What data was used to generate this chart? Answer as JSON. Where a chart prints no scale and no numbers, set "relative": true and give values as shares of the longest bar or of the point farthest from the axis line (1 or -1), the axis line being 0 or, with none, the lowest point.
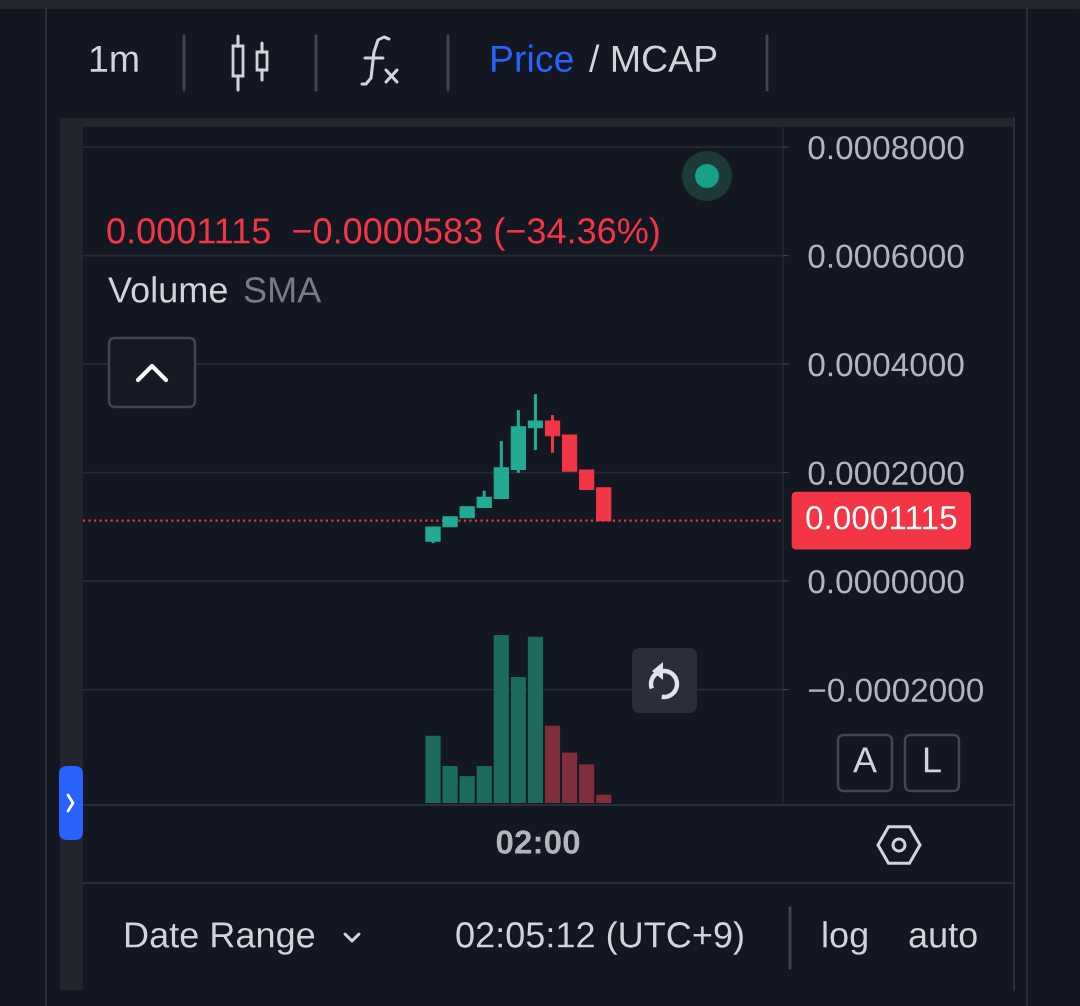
{
  "chart_data": [
    {
      "type": "candlestick",
      "subtitle": "0.0001115  −0.0000583 (−34.36%)",
      "categories": [
        null,
        null,
        null,
        null,
        null,
        null,
        null,
        null,
        null,
        null,
        null,
        null,
        null,
        null,
        null,
        null,
        null,
        null,
        null,
        null,
        null,
        null,
        null,
        null,
        null,
        null,
        null,
        null,
        null,
        null,
        null,
        null,
        null,
        null,
        null,
        null,
        null,
        null,
        null,
        null,
        null
      ],
      "ohlc": [
        null,
        null,
        null,
        null,
        null,
        null,
        null,
        null,
        null,
        null,
        null,
        null,
        null,
        null,
        null,
        null,
        null,
        null,
        null,
        null,
        [
          7.37e-05,
          9.95e-05,
          7e-05,
          9.95e-05
        ],
        [
          0.0001001,
          0.0001185,
          0.0001001,
          0.0001185
        ],
        [
          0.0001167,
          0.000137,
          0.0001167,
          0.000137
        ],
        [
          0.0001358,
          0.0001665,
          0.0001358,
          0.0001543
        ],
        [
          0.0001524,
          0.0002581,
          0.0001524,
          0.0002088
        ],
        [
          0.0002059,
          0.0003152,
          0.0001996,
          0.0002844
        ],
        [
          0.0002826,
          0.0003447,
          0.0002415,
          0.0002949
        ],
        [
          0.0002949,
          0.000306,
          0.0002365,
          0.0002678
        ],
        [
          0.0002691,
          0.0002691,
          0.0002028,
          0.0002028
        ],
        [
          0.0002046,
          0.0002046,
          0.0001677,
          0.000169
        ],
        [
          0.000172,
          0.000172,
          0.0001115,
          0.0001115
        ],
        null,
        null,
        null,
        null,
        null,
        null,
        null,
        null,
        null,
        null
      ],
      "colors": [
        null,
        null,
        null,
        null,
        null,
        null,
        null,
        null,
        null,
        null,
        null,
        null,
        null,
        null,
        null,
        null,
        null,
        null,
        null,
        null,
        "#22ab94",
        "#22ab94",
        "#22ab94",
        "#22ab94",
        "#22ab94",
        "#22ab94",
        "#22ab94",
        "#f23645",
        "#f23645",
        "#f23645",
        "#f23645",
        null,
        null,
        null,
        null,
        null,
        null,
        null,
        null,
        null,
        null
      ],
      "ylim": [
        -0.000409,
        0.000837
      ],
      "yticks": [
        {
          "value": -0.0002,
          "label": "−0.0002000"
        },
        {
          "value": 0,
          "label": "0.0000000"
        },
        {
          "value": 0.0002,
          "label": "0.0002000"
        },
        {
          "value": 0.0004,
          "label": "0.0004000"
        },
        {
          "value": 0.0006,
          "label": "0.0006000"
        },
        {
          "value": 0.0008,
          "label": "0.0008000"
        }
      ],
      "tick_labels": "y",
      "grid": "y",
      "ref_lines": [
        {
          "axis": "y",
          "value": 0.0001115,
          "label": "0.0001115",
          "color": "#f23645",
          "line_style": "dotted"
        }
      ],
      "annotations": [
        "1m",
        "Price",
        "/ MCAP",
        "Volume",
        "SMA",
        "Date Range",
        "02:05:12 (UTC+9)",
        "log",
        "auto",
        "A",
        "L"
      ]
    },
    {
      "type": "bar",
      "relative": true,
      "categories": [
        null,
        null,
        null,
        null,
        null,
        null,
        null,
        null,
        null,
        null,
        null,
        null,
        null,
        null,
        null,
        null,
        null,
        null,
        null,
        null,
        null,
        null,
        null,
        null,
        null,
        null,
        null,
        null,
        null,
        null,
        null,
        null,
        null,
        null,
        null,
        null,
        null,
        null,
        null,
        null,
        null
      ],
      "values": [
        null,
        null,
        null,
        null,
        null,
        null,
        null,
        null,
        null,
        null,
        null,
        null,
        null,
        null,
        null,
        null,
        null,
        null,
        null,
        null,
        0.4,
        0.22,
        0.16,
        0.22,
        1,
        0.75,
        0.99,
        0.46,
        0.3,
        0.23,
        0.05,
        null,
        null,
        null,
        null,
        null,
        null,
        null,
        null,
        null,
        null
      ],
      "colors": [
        null,
        null,
        null,
        null,
        null,
        null,
        null,
        null,
        null,
        null,
        null,
        null,
        null,
        null,
        null,
        null,
        null,
        null,
        null,
        null,
        "#1d6b5d",
        "#1d6b5d",
        "#1d6b5d",
        "#1d6b5d",
        "#1d6b5d",
        "#1d6b5d",
        "#1d6b5d",
        "#7e2f3b",
        "#7e2f3b",
        "#7e2f3b",
        "#7e2f3b",
        null,
        null,
        null,
        null,
        null,
        null,
        null,
        null,
        null,
        null
      ],
      "tick_labels": false,
      "annotations": [
        "02:00"
      ]
    }
  ]
}
